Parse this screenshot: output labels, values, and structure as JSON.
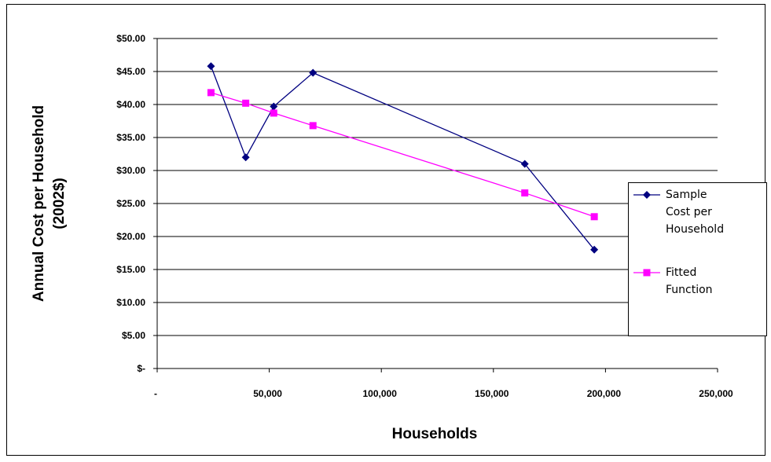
{
  "chart_data": {
    "type": "line",
    "xlabel": "Households",
    "ylabel": "Annual Cost per Household (2002$)",
    "ylabel_lines": [
      "Annual Cost per Household",
      "(2002$)"
    ],
    "xlim": [
      0,
      250000
    ],
    "ylim": [
      0,
      50
    ],
    "x_ticks": [
      0,
      50000,
      100000,
      150000,
      200000,
      250000
    ],
    "x_tick_labels": [
      "-",
      "50,000",
      "100,000",
      "150,000",
      "200,000",
      "250,000"
    ],
    "y_ticks": [
      0,
      5,
      10,
      15,
      20,
      25,
      30,
      35,
      40,
      45,
      50
    ],
    "y_tick_labels": [
      "$-",
      "$5.00",
      "$10.00",
      "$15.00",
      "$20.00",
      "$25.00",
      "$30.00",
      "$35.00",
      "$40.00",
      "$45.00",
      "$50.00"
    ],
    "grid": "horizontal",
    "legend_position": "right",
    "series": [
      {
        "name": "Sample Cost per Household",
        "legend_lines": [
          "Sample",
          "Cost per",
          "Household"
        ],
        "color": "#000080",
        "marker": "diamond",
        "x": [
          24000,
          39500,
          52000,
          69500,
          164000,
          195000
        ],
        "y": [
          45.8,
          32.0,
          39.7,
          44.8,
          31.0,
          18.0
        ]
      },
      {
        "name": "Fitted Function",
        "legend_lines": [
          "Fitted",
          "Function"
        ],
        "color": "#FF00FF",
        "marker": "square",
        "x": [
          24000,
          39500,
          52000,
          69500,
          164000,
          195000
        ],
        "y": [
          41.8,
          40.2,
          38.7,
          36.8,
          26.6,
          23.0
        ]
      }
    ]
  }
}
